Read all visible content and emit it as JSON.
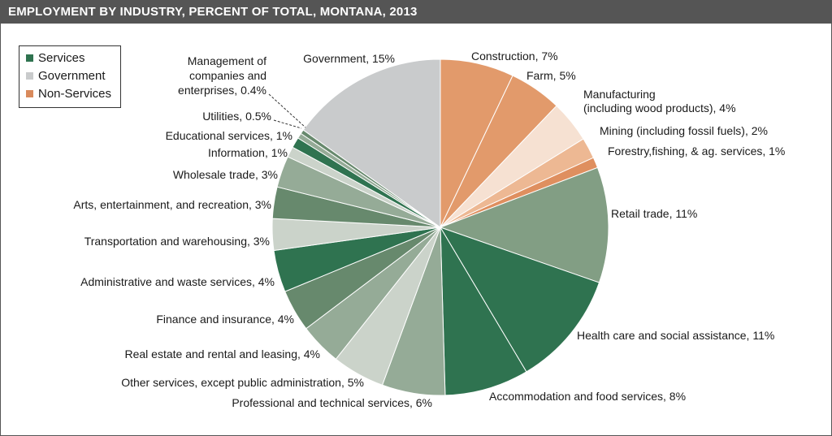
{
  "chart_data": {
    "type": "pie",
    "title": "EMPLOYMENT BY INDUSTRY, PERCENT OF TOTAL, MONTANA, 2013",
    "legend": [
      {
        "name": "Services",
        "color": "#2f7350"
      },
      {
        "name": "Government",
        "color": "#c9cbcc"
      },
      {
        "name": "Non-Services",
        "color": "#d98a5c"
      }
    ],
    "legend_placement": "top-left",
    "slices": [
      {
        "label": "Construction, 7%",
        "value": 7,
        "group": "Non-Services",
        "color": "#e29a6b"
      },
      {
        "label": "Farm, 5%",
        "value": 5,
        "group": "Non-Services",
        "color": "#e29a6b"
      },
      {
        "label": "Manufacturing",
        "label2": "(including wood products), 4%",
        "value": 4,
        "group": "Non-Services",
        "color": "#f6e1d2"
      },
      {
        "label": "Mining (including fossil fuels), 2%",
        "value": 2,
        "group": "Non-Services",
        "color": "#edb893"
      },
      {
        "label": "Forestry,fishing, & ag. services, 1%",
        "value": 1,
        "group": "Non-Services",
        "color": "#df8f5f"
      },
      {
        "label": "Retail trade, 11%",
        "value": 11,
        "group": "Services",
        "color": "#829e84"
      },
      {
        "label": "Health care and social assistance, 11%",
        "value": 11,
        "group": "Services",
        "color": "#2f7350"
      },
      {
        "label": "Accommodation and food services, 8%",
        "value": 8,
        "group": "Services",
        "color": "#2f7350"
      },
      {
        "label": "Professional and technical services, 6%",
        "value": 6,
        "group": "Services",
        "color": "#95ab97"
      },
      {
        "label": "Other services, except public administration, 5%",
        "value": 5,
        "group": "Services",
        "color": "#cbd3ca"
      },
      {
        "label": "Real estate and rental and leasing, 4%",
        "value": 4,
        "group": "Services",
        "color": "#95ab97"
      },
      {
        "label": "Finance and insurance, 4%",
        "value": 4,
        "group": "Services",
        "color": "#67896d"
      },
      {
        "label": "Administrative and waste services, 4%",
        "value": 4,
        "group": "Services",
        "color": "#2f7350"
      },
      {
        "label": "Transportation and warehousing, 3%",
        "value": 3,
        "group": "Services",
        "color": "#cbd3ca"
      },
      {
        "label": "Arts, entertainment, and recreation, 3%",
        "value": 3,
        "group": "Services",
        "color": "#67896d"
      },
      {
        "label": "Wholesale trade, 3%",
        "value": 3,
        "group": "Services",
        "color": "#95ab97"
      },
      {
        "label": "Information, 1%",
        "value": 1,
        "group": "Services",
        "color": "#cbd3ca"
      },
      {
        "label": "Educational services, 1%",
        "value": 1,
        "group": "Services",
        "color": "#2f7350"
      },
      {
        "label": "Utilities, 0.5%",
        "value": 0.5,
        "group": "Services",
        "color": "#95ab97"
      },
      {
        "label": "Management of",
        "label2": "companies and",
        "label3": "enterprises, 0.4%",
        "value": 0.4,
        "group": "Services",
        "color": "#67896d"
      },
      {
        "label": "Government, 15%",
        "value": 15,
        "group": "Government",
        "color": "#c9cbcc"
      }
    ]
  }
}
